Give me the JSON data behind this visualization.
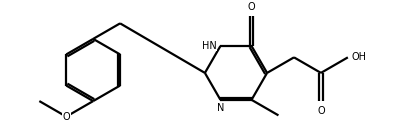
{
  "background_color": "#ffffff",
  "line_color": "#000000",
  "line_width": 1.6,
  "figsize": [
    4.03,
    1.38
  ],
  "dpi": 100,
  "xlim": [
    0,
    403
  ],
  "ylim": [
    0,
    138
  ]
}
